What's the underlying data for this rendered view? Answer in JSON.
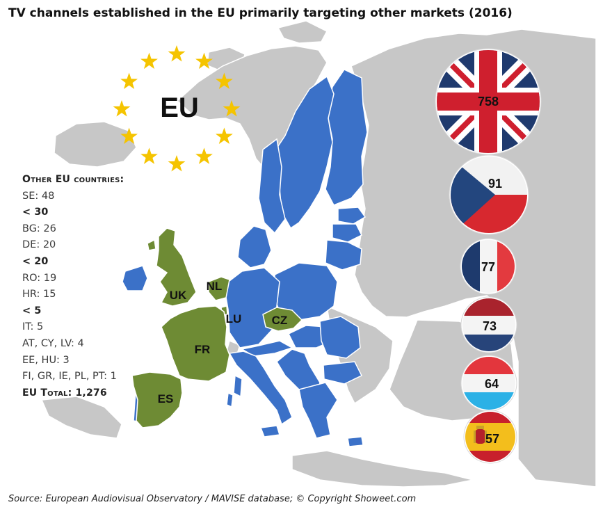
{
  "title": "TV channels established in the EU primarily targeting other markets (2016)",
  "eu_emblem_label": "EU",
  "colors": {
    "eu_country": "#3b71c8",
    "highlight_country": "#6e8b34",
    "non_eu_land": "#c7c7c7",
    "star": "#f5c400"
  },
  "country_labels": {
    "uk": "UK",
    "nl": "NL",
    "lu": "LU",
    "cz": "CZ",
    "fr": "FR",
    "es": "ES"
  },
  "other_countries": {
    "heading": "Other EU countries:",
    "lines": [
      {
        "text": "SE: 48",
        "bold": false
      },
      {
        "text": "< 30",
        "bold": true
      },
      {
        "text": "BG: 26",
        "bold": false
      },
      {
        "text": "DE: 20",
        "bold": false
      },
      {
        "text": "< 20",
        "bold": true
      },
      {
        "text": "RO: 19",
        "bold": false
      },
      {
        "text": "HR: 15",
        "bold": false
      },
      {
        "text": "< 5",
        "bold": true
      },
      {
        "text": "IT: 5",
        "bold": false
      },
      {
        "text": "AT, CY, LV: 4",
        "bold": false
      },
      {
        "text": "EE, HU: 3",
        "bold": false
      },
      {
        "text": "FI, GR, IE, PL, PT: 1",
        "bold": false
      }
    ],
    "total": "EU Total: 1,276"
  },
  "flag_values": [
    {
      "country": "UK",
      "value": "758",
      "flag": "uk-flag"
    },
    {
      "country": "CZ",
      "value": "91",
      "flag": "czech-flag"
    },
    {
      "country": "FR",
      "value": "77",
      "flag": "france-flag"
    },
    {
      "country": "NL",
      "value": "73",
      "flag": "netherlands-flag"
    },
    {
      "country": "LU",
      "value": "64",
      "flag": "luxembourg-flag"
    },
    {
      "country": "ES",
      "value": "57",
      "flag": "spain-flag"
    }
  ],
  "source": "Source: European Audiovisual Observatory / MAVISE database; © Copyright Showeet.com"
}
